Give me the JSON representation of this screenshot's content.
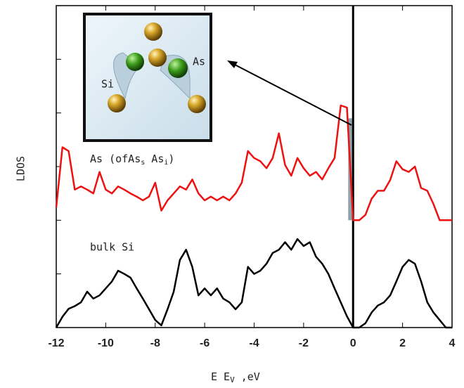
{
  "chart_data": {
    "type": "line",
    "y_label": "LDOS",
    "x_label": {
      "main": "E  E",
      "sub": "V",
      "tail": " ,eV"
    },
    "annotations": [
      {
        "parts": [
          "As (ofAs",
          "s",
          "  As",
          "i",
          ")"
        ]
      },
      {
        "parts": [
          "bulk Si"
        ]
      }
    ],
    "inset_labels": [
      "Si",
      "As"
    ],
    "x": [
      -12,
      -11.75,
      -11.5,
      -11.25,
      -11,
      -10.75,
      -10.5,
      -10.25,
      -10,
      -9.75,
      -9.5,
      -9.25,
      -9,
      -8.75,
      -8.5,
      -8.25,
      -8,
      -7.75,
      -7.5,
      -7.25,
      -7,
      -6.75,
      -6.5,
      -6.25,
      -6,
      -5.75,
      -5.5,
      -5.25,
      -5,
      -4.75,
      -4.5,
      -4.25,
      -4,
      -3.75,
      -3.5,
      -3.25,
      -3,
      -2.75,
      -2.5,
      -2.25,
      -2,
      -1.75,
      -1.5,
      -1.25,
      -1,
      -0.75,
      -0.5,
      -0.25,
      0,
      0.25,
      0.5,
      0.75,
      1,
      1.25,
      1.5,
      1.75,
      2,
      2.25,
      2.5,
      2.75,
      3,
      3.25,
      3.5,
      3.75,
      4
    ],
    "series": [
      {
        "color": "#ee1111",
        "values": [
          2.24,
          3.36,
          3.29,
          2.57,
          2.63,
          2.57,
          2.5,
          2.9,
          2.57,
          2.5,
          2.63,
          2.57,
          2.5,
          2.44,
          2.37,
          2.44,
          2.7,
          2.18,
          2.37,
          2.5,
          2.63,
          2.57,
          2.76,
          2.5,
          2.37,
          2.44,
          2.37,
          2.44,
          2.37,
          2.5,
          2.7,
          3.29,
          3.16,
          3.1,
          2.97,
          3.16,
          3.62,
          3.03,
          2.83,
          3.16,
          2.97,
          2.83,
          2.9,
          2.76,
          2.97,
          3.16,
          4.14,
          4.1,
          2.0,
          2.0,
          2.1,
          2.4,
          2.55,
          2.55,
          2.75,
          3.1,
          2.95,
          2.9,
          3.0,
          2.6,
          2.55,
          2.3,
          2.0,
          2.0,
          2.0
        ]
      },
      {
        "color": "#000000",
        "values": [
          0,
          0.2,
          0.35,
          0.4,
          0.47,
          0.67,
          0.54,
          0.6,
          0.73,
          0.86,
          1.06,
          1.0,
          0.93,
          0.73,
          0.54,
          0.34,
          0.14,
          0.04,
          0.34,
          0.67,
          1.26,
          1.45,
          1.13,
          0.6,
          0.73,
          0.6,
          0.73,
          0.54,
          0.47,
          0.34,
          0.47,
          1.13,
          1.0,
          1.06,
          1.19,
          1.39,
          1.45,
          1.59,
          1.45,
          1.65,
          1.52,
          1.59,
          1.32,
          1.19,
          1.0,
          0.73,
          0.47,
          0.21,
          0,
          0,
          0.08,
          0.28,
          0.41,
          0.47,
          0.6,
          0.86,
          1.13,
          1.26,
          1.19,
          0.86,
          0.47,
          0.28,
          0.14,
          0,
          0
        ]
      }
    ],
    "xlim": [
      -12,
      4
    ],
    "xticks": [
      -12,
      -10,
      -8,
      -6,
      -4,
      -2,
      0,
      2,
      4
    ],
    "ylim": [
      0,
      6
    ],
    "yticks": [
      1,
      2,
      3,
      4,
      5
    ]
  }
}
